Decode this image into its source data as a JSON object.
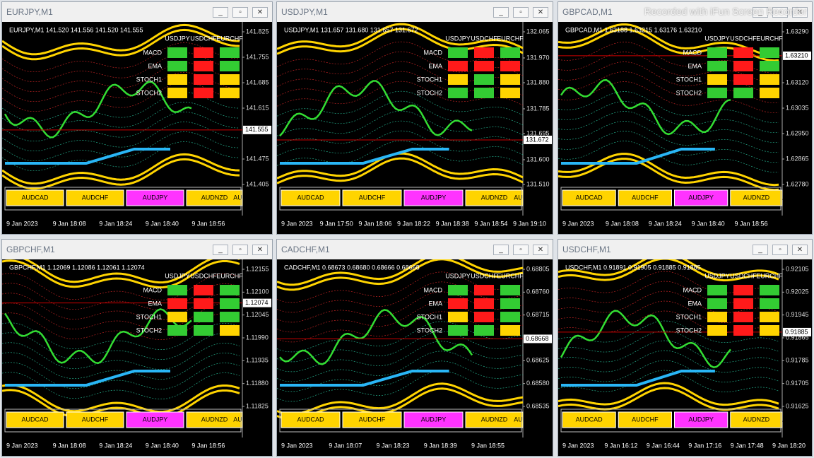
{
  "watermark": "Recorded with iFun Screen Recorder",
  "windows": [
    {
      "title": "EURJPY,M1",
      "header": "EURJPY,M1 141.520 141.556 141.520 141.555",
      "price_ticks": [
        "141.825",
        "141.755",
        "141.685",
        "141.615",
        "141.475",
        "141.405"
      ],
      "current_price": "141.555",
      "time_labels": [
        "9 Jan 2023",
        "9 Jan 18:08",
        "9 Jan 18:24",
        "9 Jan 18:40",
        "9 Jan 18:56"
      ],
      "signals": {
        "columns": [
          "USDJPY",
          "USDCHF",
          "EURCHF"
        ],
        "rows": [
          {
            "name": "MACD",
            "colors": [
              "#33cc33",
              "#ff1a1a",
              "#33cc33"
            ]
          },
          {
            "name": "EMA",
            "colors": [
              "#33cc33",
              "#ff1a1a",
              "#33cc33"
            ]
          },
          {
            "name": "STOCH1",
            "colors": [
              "#ffd400",
              "#ff1a1a",
              "#ffd400"
            ]
          },
          {
            "name": "STOCH2",
            "colors": [
              "#ffd400",
              "#ff1a1a",
              "#ffd400"
            ]
          }
        ]
      },
      "buttons": [
        {
          "label": "AUDCAD",
          "color": "#ffd400"
        },
        {
          "label": "AUDCHF",
          "color": "#ffd400"
        },
        {
          "label": "AUDJPY",
          "color": "#ff33ff"
        },
        {
          "label": "AUDNZD",
          "color": "#ffd400"
        },
        {
          "label": "AUDUS",
          "color": "#ffd400"
        }
      ]
    },
    {
      "title": "USDJPY,M1",
      "header": "USDJPY,M1 131.657 131.680 131.657 131.672",
      "price_ticks": [
        "132.065",
        "131.970",
        "131.880",
        "131.785",
        "131.695",
        "131.600",
        "131.510"
      ],
      "current_price": "131.672",
      "time_labels": [
        "9 Jan 2023",
        "9 Jan 17:50",
        "9 Jan 18:06",
        "9 Jan 18:22",
        "9 Jan 18:38",
        "9 Jan 18:54",
        "9 Jan 19:10"
      ],
      "signals": {
        "columns": [
          "USDJPY",
          "USDCHF",
          "EURCHF"
        ],
        "rows": [
          {
            "name": "MACD",
            "colors": [
              "#33cc33",
              "#ff1a1a",
              "#33cc33"
            ]
          },
          {
            "name": "EMA",
            "colors": [
              "#ff1a1a",
              "#ff1a1a",
              "#ff1a1a"
            ]
          },
          {
            "name": "STOCH1",
            "colors": [
              "#ffd400",
              "#33cc33",
              "#ffd400"
            ]
          },
          {
            "name": "STOCH2",
            "colors": [
              "#33cc33",
              "#33cc33",
              "#ffd400"
            ]
          }
        ]
      },
      "buttons": [
        {
          "label": "AUDCAD",
          "color": "#ffd400"
        },
        {
          "label": "AUDCHF",
          "color": "#ffd400"
        },
        {
          "label": "AUDJPY",
          "color": "#ff33ff"
        },
        {
          "label": "AUDNZD",
          "color": "#ffd400"
        },
        {
          "label": "AUDUS",
          "color": "#ffd400"
        }
      ]
    },
    {
      "title": "GBPCAD,M1",
      "header": "GBPCAD,M1 1.63188 1.63215 1.63176 1.63210",
      "price_ticks": [
        "1.63290",
        "1.63120",
        "1.63035",
        "1.62950",
        "1.62865",
        "1.62780"
      ],
      "current_price": "1.63210",
      "time_labels": [
        "9 Jan 2023",
        "9 Jan 18:08",
        "9 Jan 18:24",
        "9 Jan 18:40",
        "9 Jan 18:56"
      ],
      "signals": {
        "columns": [
          "USDJPY",
          "USDCHF",
          "EURCHF"
        ],
        "rows": [
          {
            "name": "MACD",
            "colors": [
              "#33cc33",
              "#ff1a1a",
              "#33cc33"
            ]
          },
          {
            "name": "EMA",
            "colors": [
              "#33cc33",
              "#ff1a1a",
              "#33cc33"
            ]
          },
          {
            "name": "STOCH1",
            "colors": [
              "#ffd400",
              "#ff1a1a",
              "#ffd400"
            ]
          },
          {
            "name": "STOCH2",
            "colors": [
              "#33cc33",
              "#33cc33",
              "#ffd400"
            ]
          }
        ]
      },
      "buttons": [
        {
          "label": "AUDCAD",
          "color": "#ffd400"
        },
        {
          "label": "AUDCHF",
          "color": "#ffd400"
        },
        {
          "label": "AUDJPY",
          "color": "#ff33ff"
        },
        {
          "label": "AUDNZD",
          "color": "#ffd400"
        },
        {
          "label": "A",
          "color": "#ffd400"
        }
      ]
    },
    {
      "title": "GBPCHF,M1",
      "header": "GBPCHF,M1 1.12069 1.12086 1.12061 1.12074",
      "price_ticks": [
        "1.12155",
        "1.12100",
        "1.12045",
        "1.11990",
        "1.11935",
        "1.11880",
        "1.11825"
      ],
      "current_price": "1.12074",
      "time_labels": [
        "9 Jan 2023",
        "9 Jan 18:08",
        "9 Jan 18:24",
        "9 Jan 18:40",
        "9 Jan 18:56"
      ],
      "signals": {
        "columns": [
          "USDJPY",
          "USDCHF",
          "EURCHF"
        ],
        "rows": [
          {
            "name": "MACD",
            "colors": [
              "#33cc33",
              "#ff1a1a",
              "#33cc33"
            ]
          },
          {
            "name": "EMA",
            "colors": [
              "#ff1a1a",
              "#ff1a1a",
              "#33cc33"
            ]
          },
          {
            "name": "STOCH1",
            "colors": [
              "#ffd400",
              "#33cc33",
              "#33cc33"
            ]
          },
          {
            "name": "STOCH2",
            "colors": [
              "#33cc33",
              "#33cc33",
              "#ffd400"
            ]
          }
        ]
      },
      "buttons": [
        {
          "label": "AUDCAD",
          "color": "#ffd400"
        },
        {
          "label": "AUDCHF",
          "color": "#ffd400"
        },
        {
          "label": "AUDJPY",
          "color": "#ff33ff"
        },
        {
          "label": "AUDNZD",
          "color": "#ffd400"
        },
        {
          "label": "AUDUS",
          "color": "#ffd400"
        }
      ]
    },
    {
      "title": "CADCHF,M1",
      "header": "CADCHF,M1 0.68673 0.68680 0.68666 0.68668",
      "price_ticks": [
        "0.68805",
        "0.68760",
        "0.68715",
        "0.68625",
        "0.68580",
        "0.68535"
      ],
      "current_price": "0.68668",
      "time_labels": [
        "9 Jan 2023",
        "9 Jan 18:07",
        "9 Jan 18:23",
        "9 Jan 18:39",
        "9 Jan 18:55"
      ],
      "signals": {
        "columns": [
          "USDJPY",
          "USDCHF",
          "EURCHF"
        ],
        "rows": [
          {
            "name": "MACD",
            "colors": [
              "#33cc33",
              "#ff1a1a",
              "#33cc33"
            ]
          },
          {
            "name": "EMA",
            "colors": [
              "#ff1a1a",
              "#ff1a1a",
              "#33cc33"
            ]
          },
          {
            "name": "STOCH1",
            "colors": [
              "#ffd400",
              "#ff1a1a",
              "#33cc33"
            ]
          },
          {
            "name": "STOCH2",
            "colors": [
              "#33cc33",
              "#33cc33",
              "#ffd400"
            ]
          }
        ]
      },
      "buttons": [
        {
          "label": "AUDCAD",
          "color": "#ffd400"
        },
        {
          "label": "AUDCHF",
          "color": "#ffd400"
        },
        {
          "label": "AUDJPY",
          "color": "#ff33ff"
        },
        {
          "label": "AUDNZD",
          "color": "#ffd400"
        },
        {
          "label": "AUDUS",
          "color": "#ffd400"
        }
      ]
    },
    {
      "title": "USDCHF,M1",
      "header": "USDCHF,M1 0.91891 0.91905 0.91885 0.91885",
      "price_ticks": [
        "0.92105",
        "0.92025",
        "0.91945",
        "0.91865",
        "0.91785",
        "0.91705",
        "0.91625"
      ],
      "current_price": "0.91885",
      "time_labels": [
        "9 Jan 2023",
        "9 Jan 16:12",
        "9 Jan 16:44",
        "9 Jan 17:16",
        "9 Jan 17:48",
        "9 Jan 18:20"
      ],
      "signals": {
        "columns": [
          "USDJPY",
          "USDCHF",
          "EURCHF"
        ],
        "rows": [
          {
            "name": "MACD",
            "colors": [
              "#33cc33",
              "#ff1a1a",
              "#33cc33"
            ]
          },
          {
            "name": "EMA",
            "colors": [
              "#33cc33",
              "#ff1a1a",
              "#33cc33"
            ]
          },
          {
            "name": "STOCH1",
            "colors": [
              "#ffd400",
              "#ff1a1a",
              "#ffd400"
            ]
          },
          {
            "name": "STOCH2",
            "colors": [
              "#ffd400",
              "#ff1a1a",
              "#ffd400"
            ]
          }
        ]
      },
      "buttons": [
        {
          "label": "AUDCAD",
          "color": "#ffd400"
        },
        {
          "label": "AUDCHF",
          "color": "#ffd400"
        },
        {
          "label": "AUDJPY",
          "color": "#ff33ff"
        },
        {
          "label": "AUDNZD",
          "color": "#ffd400"
        },
        {
          "label": "A",
          "color": "#ffd400"
        }
      ]
    }
  ]
}
